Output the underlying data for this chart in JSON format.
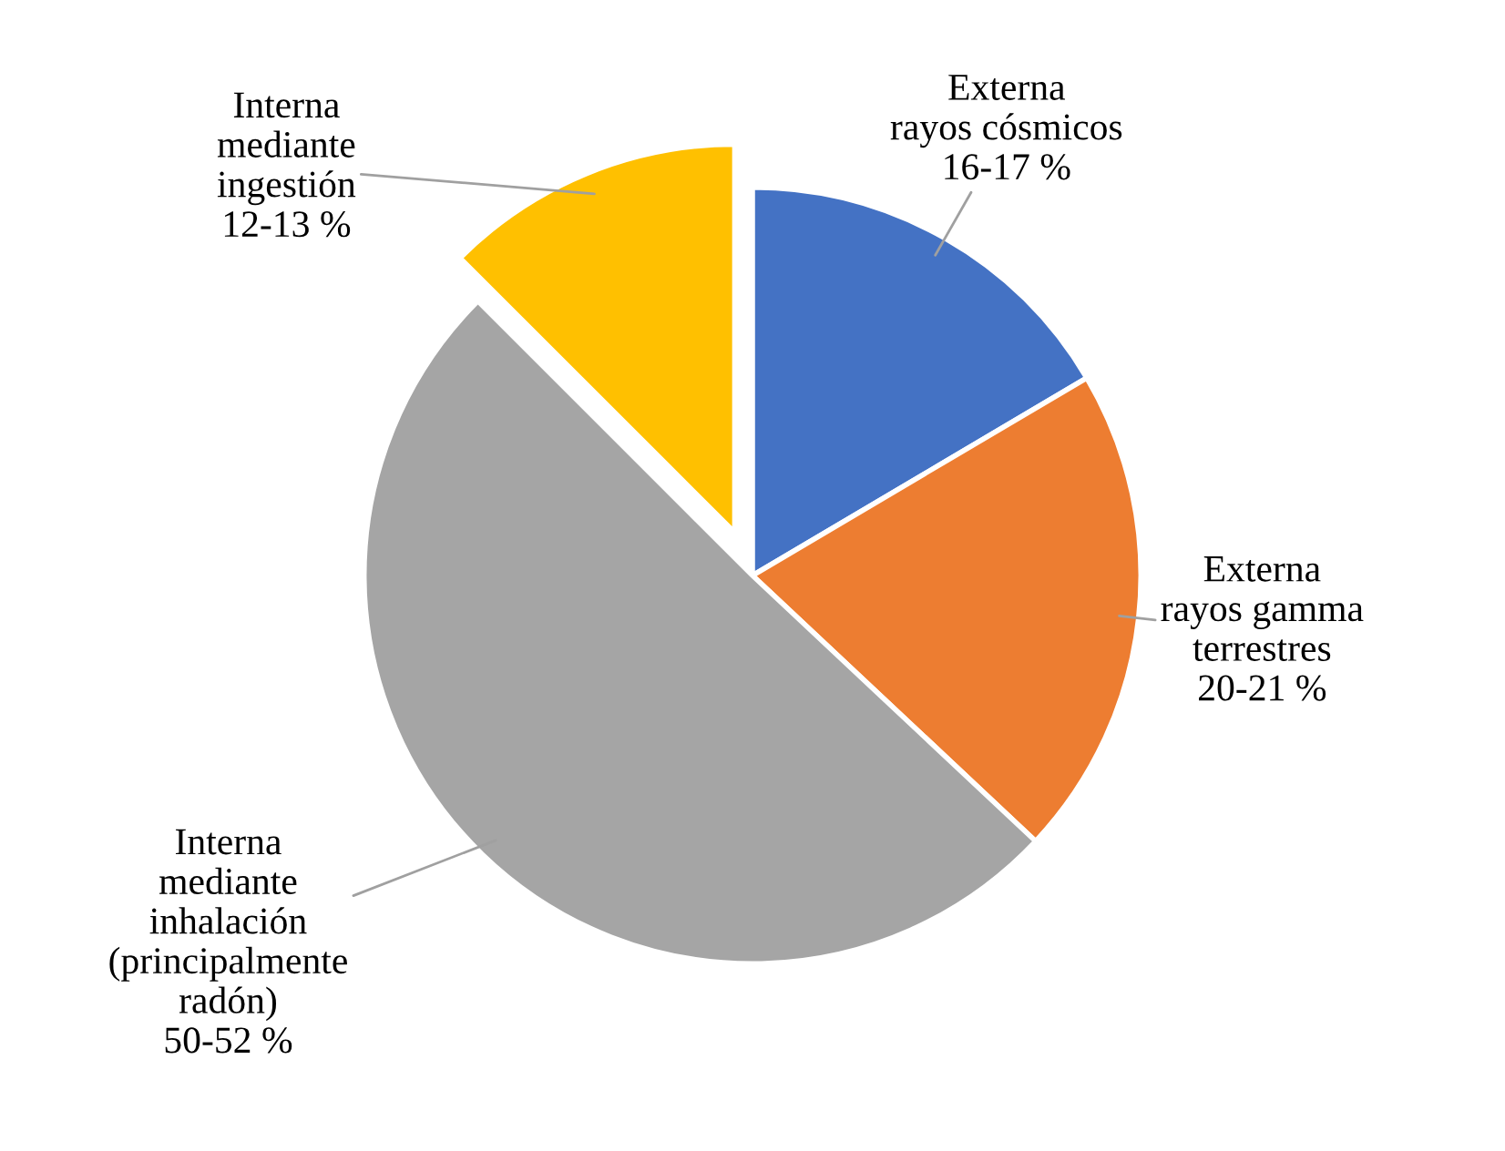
{
  "chart_data": {
    "type": "pie",
    "categories": [
      "Externa\nrayos cósmicos",
      "Externa\nrayos gamma\nterrestres",
      "Interna\nmediante\ninhalación\n(principalmente\nradón)",
      "Interna\nmediante\ningestión"
    ],
    "values": [
      16.5,
      20.5,
      50.5,
      12.5
    ],
    "value_labels": [
      "16-17 %",
      "20-21 %",
      "50-52 %",
      "12-13 %"
    ],
    "colors": [
      "#4472c4",
      "#ed7d31",
      "#a5a5a5",
      "#ffc000"
    ]
  }
}
